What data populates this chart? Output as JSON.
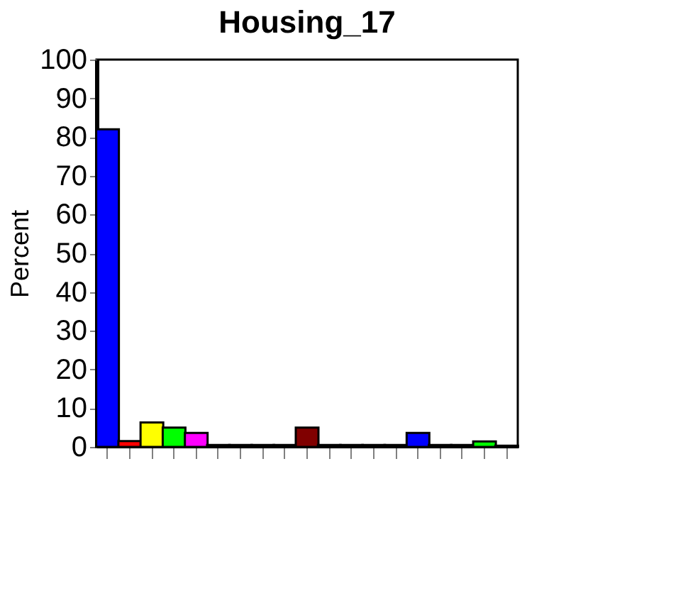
{
  "chart_data": {
    "type": "bar",
    "title": "Housing_17",
    "ylabel": "Percent",
    "categories": [
      null,
      null,
      null,
      null,
      null,
      null,
      null,
      null,
      null,
      null,
      null,
      null,
      null,
      null,
      null,
      null,
      null,
      null,
      null
    ],
    "values": [
      82,
      1.5,
      6.3,
      5,
      3.6,
      0.5,
      0.5,
      0.5,
      0.5,
      5,
      0.5,
      0.5,
      0.5,
      0.5,
      3.6,
      0.5,
      0.5,
      1.4,
      0.3
    ],
    "colors": [
      "#0000ff",
      "#ff0000",
      "#ffff00",
      "#00ff00",
      "#ff00ff",
      "#00cccc",
      "#000080",
      "#004d00",
      "#004d4d",
      "#800000",
      "#400040",
      "#404000",
      "#4d4d4d",
      "#4d4d4d",
      "#0000ff",
      "#ff0000",
      "#cccc00",
      "#00ff00",
      "#ffffff"
    ],
    "ylim": [
      0,
      100
    ],
    "yticks": [
      0,
      10,
      20,
      30,
      40,
      50,
      60,
      70,
      80,
      90,
      100
    ],
    "grid": false
  }
}
